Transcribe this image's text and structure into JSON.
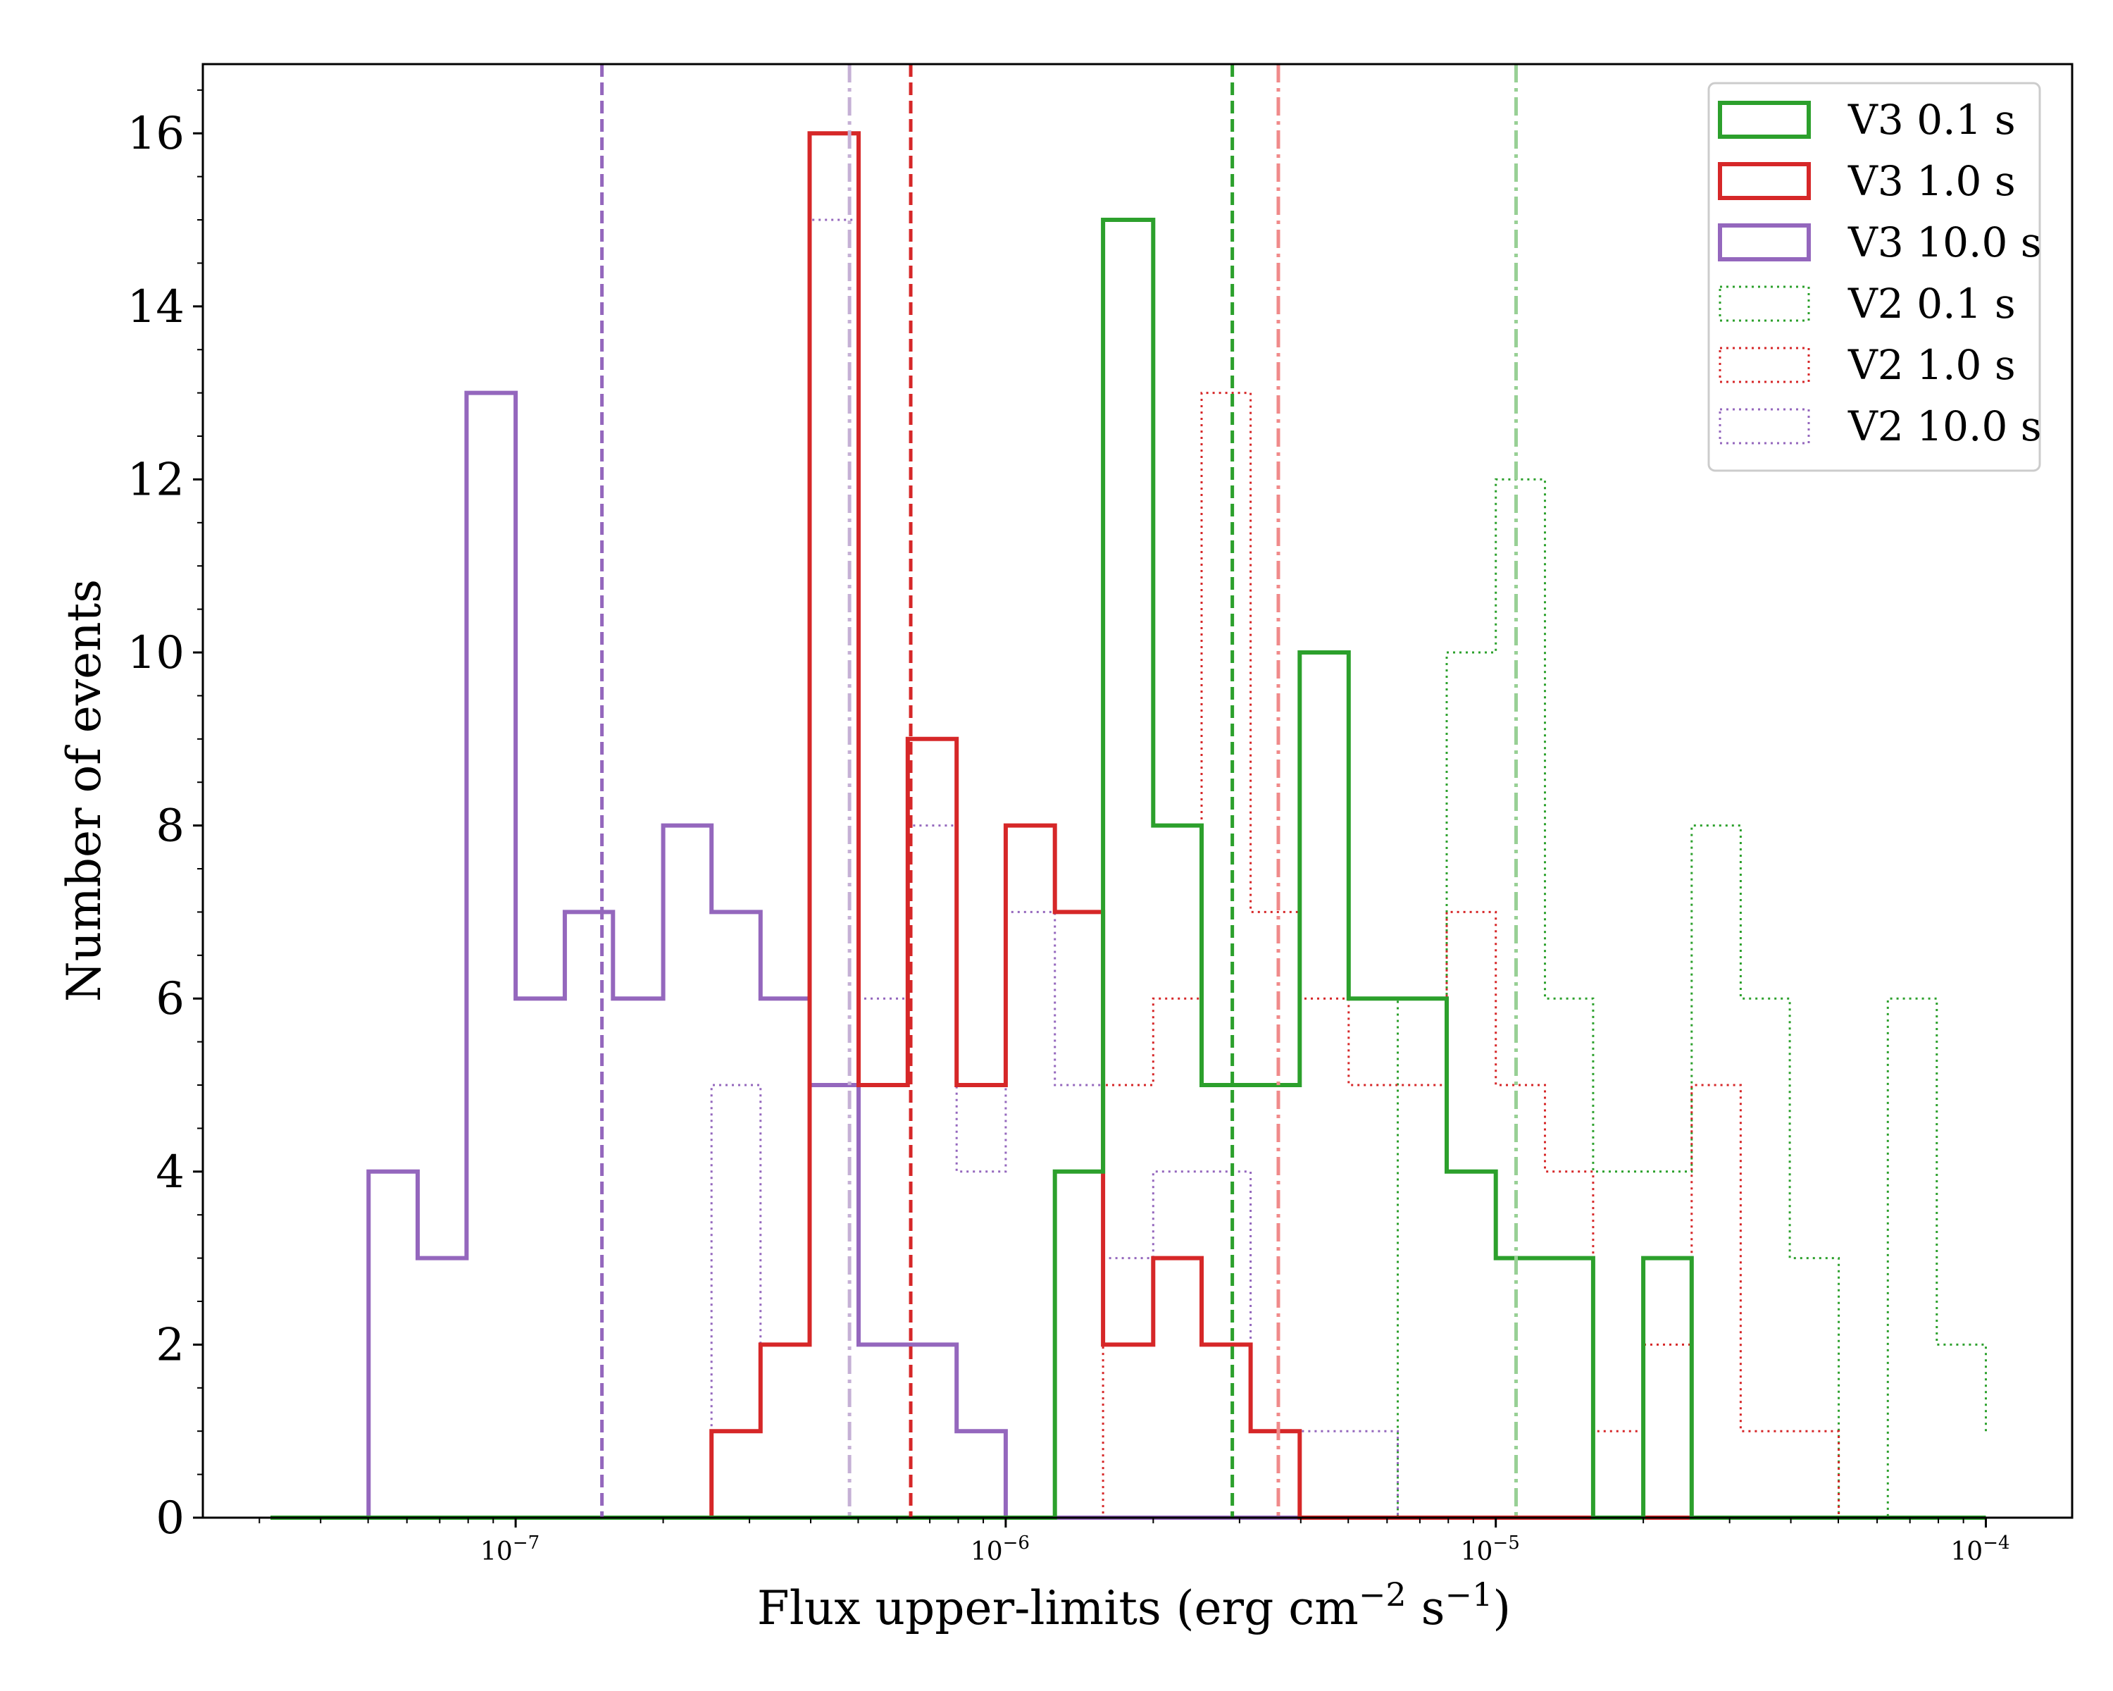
{
  "chart_data": {
    "type": "histogram",
    "xlabel": "Flux upper-limits (erg cm",
    "xlabel_sup1": "−2",
    "xlabel_mid": " s",
    "xlabel_sup2": "−1",
    "xlabel_end": ")",
    "ylabel": "Number of events",
    "xscale": "log",
    "xlim": [
      2.3e-08,
      0.00015
    ],
    "ylim": [
      0,
      16.8
    ],
    "yticks": [
      0,
      2,
      4,
      6,
      8,
      10,
      12,
      14,
      16
    ],
    "xticks": [
      {
        "exp": "-7",
        "value": 1e-07
      },
      {
        "exp": "-6",
        "value": 1e-06
      },
      {
        "exp": "-5",
        "value": 1e-05
      },
      {
        "exp": "-4",
        "value": 0.0001
      }
    ],
    "bin_edges": [
      3.16e-08,
      3.98e-08,
      5.01e-08,
      6.31e-08,
      7.94e-08,
      1e-07,
      1.26e-07,
      1.58e-07,
      2e-07,
      2.51e-07,
      3.16e-07,
      3.98e-07,
      5.01e-07,
      6.31e-07,
      7.94e-07,
      1e-06,
      1.26e-06,
      1.58e-06,
      2e-06,
      2.51e-06,
      3.16e-06,
      3.98e-06,
      5.01e-06,
      6.31e-06,
      7.94e-06,
      1e-05,
      1.26e-05,
      1.58e-05,
      2e-05,
      2.51e-05,
      3.16e-05,
      3.98e-05,
      5.01e-05,
      6.31e-05,
      7.94e-05,
      0.0001
    ],
    "series": [
      {
        "name": "V3 0.1 s",
        "color": "#2ca02c",
        "style": "solid",
        "counts": [
          0,
          0,
          0,
          0,
          0,
          0,
          0,
          0,
          0,
          0,
          0,
          0,
          0,
          0,
          0,
          0,
          4,
          15,
          8,
          5,
          5,
          10,
          6,
          6,
          4,
          3,
          3,
          0,
          3,
          0,
          0,
          0,
          0,
          0,
          0,
          0
        ]
      },
      {
        "name": "V3 1.0 s",
        "color": "#d62728",
        "style": "solid",
        "counts": [
          0,
          0,
          0,
          0,
          0,
          0,
          0,
          0,
          0,
          1,
          2,
          16,
          5,
          9,
          5,
          8,
          7,
          2,
          3,
          2,
          1,
          0,
          0,
          0,
          0,
          0,
          0,
          0,
          0,
          0,
          0,
          0,
          0,
          0,
          0,
          0
        ]
      },
      {
        "name": "V3 10.0 s",
        "color": "#9467bd",
        "style": "solid",
        "counts": [
          0,
          0,
          4,
          3,
          13,
          6,
          7,
          6,
          8,
          7,
          6,
          5,
          2,
          2,
          1,
          0,
          0,
          0,
          0,
          0,
          0,
          0,
          0,
          0,
          0,
          0,
          0,
          0,
          0,
          0,
          0,
          0,
          0,
          0,
          0,
          0
        ]
      },
      {
        "name": "V2 0.1 s",
        "color": "#2ca02c",
        "style": "dotted",
        "counts": [
          0,
          0,
          0,
          0,
          0,
          0,
          0,
          0,
          0,
          0,
          0,
          0,
          0,
          0,
          0,
          0,
          0,
          0,
          0,
          0,
          0,
          0,
          0,
          6,
          10,
          12,
          6,
          4,
          4,
          8,
          6,
          3,
          0,
          6,
          2,
          1
        ]
      },
      {
        "name": "V2 1.0 s",
        "color": "#d62728",
        "style": "dotted",
        "counts": [
          0,
          0,
          0,
          0,
          0,
          0,
          0,
          0,
          0,
          0,
          0,
          0,
          0,
          0,
          0,
          0,
          0,
          5,
          6,
          13,
          7,
          6,
          5,
          5,
          7,
          5,
          4,
          1,
          2,
          5,
          1,
          1,
          0,
          0,
          0,
          0
        ]
      },
      {
        "name": "V2 10.0 s",
        "color": "#9467bd",
        "style": "dotted",
        "counts": [
          0,
          0,
          0,
          0,
          0,
          0,
          0,
          0,
          0,
          5,
          2,
          15,
          6,
          8,
          4,
          7,
          5,
          3,
          4,
          4,
          1,
          1,
          1,
          0,
          0,
          0,
          0,
          0,
          0,
          0,
          0,
          0,
          0,
          0,
          0,
          0
        ]
      }
    ],
    "vlines": [
      {
        "x": 1.5e-07,
        "color": "#9467bd",
        "style": "dashed"
      },
      {
        "x": 4.8e-07,
        "color": "#c5b0d5",
        "style": "dashdot"
      },
      {
        "x": 6.4e-07,
        "color": "#d62728",
        "style": "dashed"
      },
      {
        "x": 2.9e-06,
        "color": "#2ca02c",
        "style": "dashed"
      },
      {
        "x": 3.6e-06,
        "color": "#f08a8a",
        "style": "dashdot"
      },
      {
        "x": 1.1e-05,
        "color": "#98d095",
        "style": "dashdot"
      }
    ],
    "legend_position": "top-right"
  }
}
